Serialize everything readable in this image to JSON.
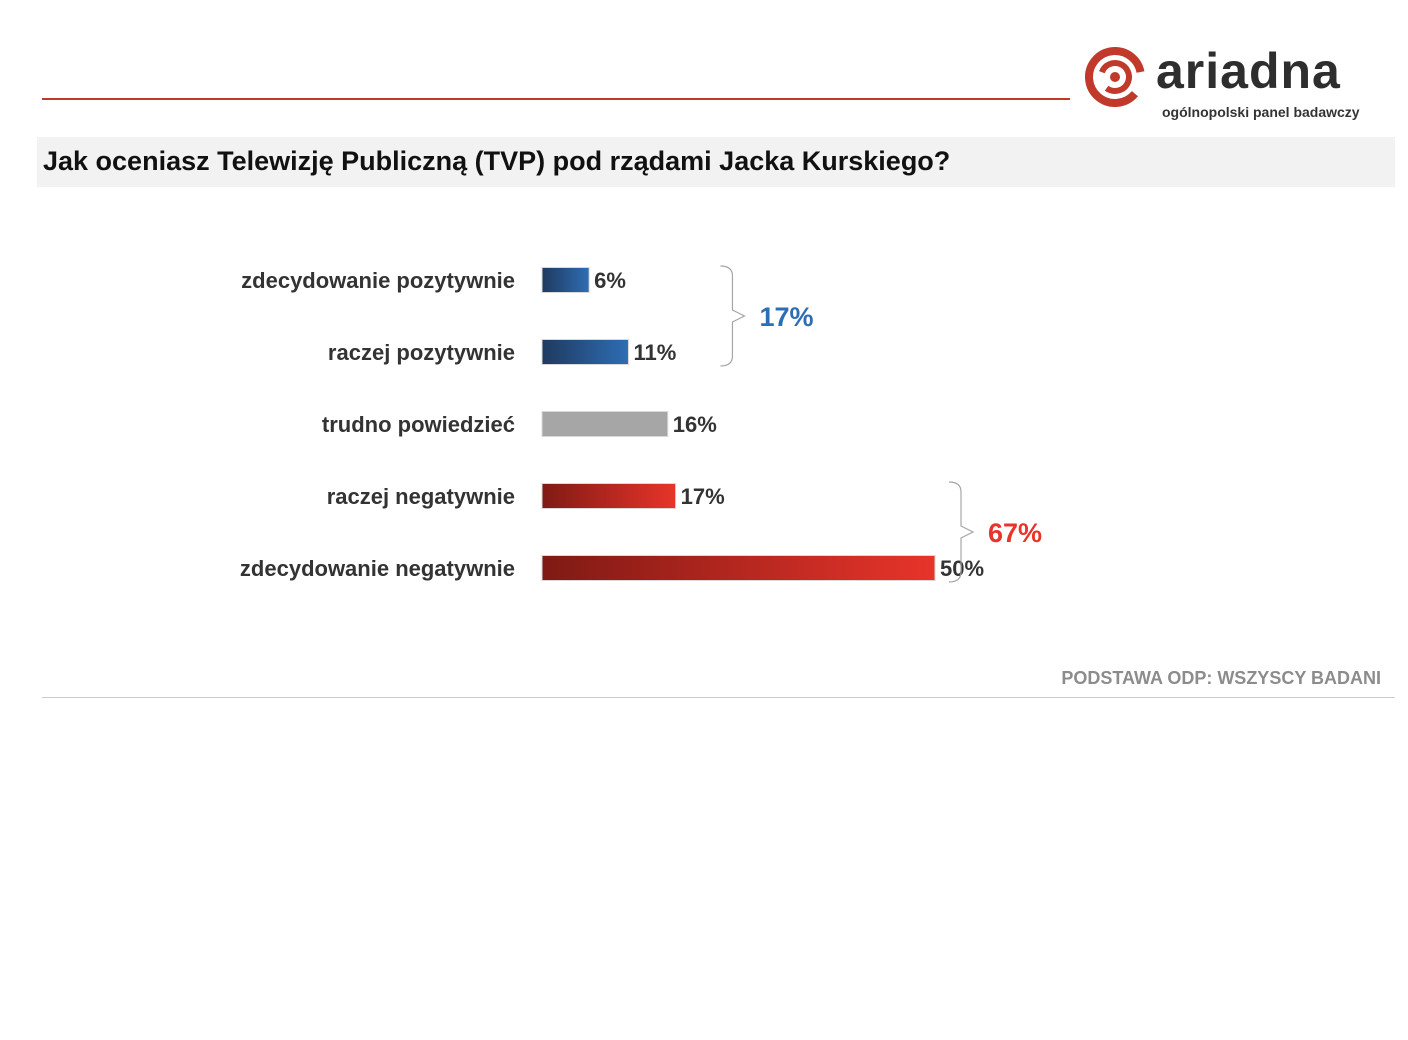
{
  "brand": {
    "name": "ariadna",
    "tagline": "ogólnopolski panel badawczy",
    "icon": "ariadna-spiral-logo-icon",
    "color": "#c0392b"
  },
  "title": "Jak oceniasz Telewizję Publiczną (TVP) pod rządami Jacka Kurskiego?",
  "base_note": "PODSTAWA ODP: WSZYSCY BADANI",
  "chart_data": {
    "type": "bar",
    "orientation": "horizontal",
    "title": "",
    "xlabel": "",
    "ylabel": "",
    "xlim": [
      0,
      50
    ],
    "grid": false,
    "categories": [
      "zdecydowanie pozytywnie",
      "raczej pozytywnie",
      "trudno powiedzieć",
      "raczej negatywnie",
      "zdecydowanie negatywnie"
    ],
    "values": [
      6,
      11,
      16,
      17,
      50
    ],
    "value_labels": [
      "6%",
      "11%",
      "16%",
      "17%",
      "50%"
    ],
    "bar_colors": [
      [
        "#1f3a5f",
        "#2e6db4"
      ],
      [
        "#1f3a5f",
        "#2e6db4"
      ],
      [
        "#a6a6a6",
        "#a6a6a6"
      ],
      [
        "#7f1a14",
        "#e8342a"
      ],
      [
        "#7f1a14",
        "#e8342a"
      ]
    ],
    "groups": [
      {
        "members": [
          0,
          1
        ],
        "total": 17,
        "label": "17%",
        "color": "#2e6db4"
      },
      {
        "members": [
          3,
          4
        ],
        "total": 67,
        "label": "67%",
        "color": "#e8342a"
      }
    ]
  }
}
